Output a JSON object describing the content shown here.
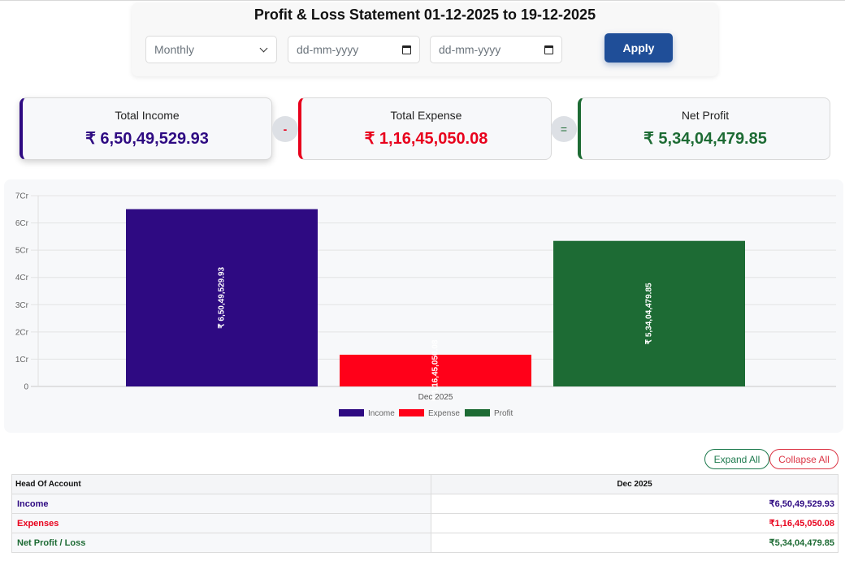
{
  "header": {
    "title": "Profit & Loss Statement 01-12-2025 to 19-12-2025"
  },
  "filters": {
    "period_select": {
      "value": "Monthly",
      "icon": "chevron-down-icon"
    },
    "from_date": {
      "placeholder": "dd-mm-yyyy",
      "icon": "calendar-icon"
    },
    "to_date": {
      "placeholder": "dd-mm-yyyy",
      "icon": "calendar-icon"
    },
    "apply_label": "Apply"
  },
  "summary": {
    "income": {
      "label": "Total Income",
      "value": "₹ 6,50,49,529.93",
      "color": "#2e0a82"
    },
    "minus_op": "-",
    "expense": {
      "label": "Total Expense",
      "value": "₹ 1,16,45,050.08",
      "color": "#e8001c"
    },
    "equals_op": "=",
    "profit": {
      "label": "Net Profit",
      "value": "₹ 5,34,04,479.85",
      "color": "#1d6b34"
    }
  },
  "chart_data": {
    "type": "bar",
    "title": "",
    "categories": [
      "Dec 2025"
    ],
    "series": [
      {
        "name": "Income",
        "values": [
          65049529.93
        ],
        "label": "₹ 6,50,49,529.93",
        "color": "#2e0a82"
      },
      {
        "name": "Expense",
        "values": [
          11645050.08
        ],
        "label": "₹ 1,16,45,050.08",
        "color": "#ff0019"
      },
      {
        "name": "Profit",
        "values": [
          53404479.85
        ],
        "label": "₹ 5,34,04,479.85",
        "color": "#1d6b34"
      }
    ],
    "xlabel": "",
    "ylabel": "",
    "ylim": [
      0,
      70000000
    ],
    "yticks": [
      "0",
      "1Cr",
      "2Cr",
      "3Cr",
      "4Cr",
      "5Cr",
      "6Cr",
      "7Cr"
    ],
    "grid": true,
    "legend_position": "bottom"
  },
  "actions": {
    "expand_all": "Expand All",
    "collapse_all": "Collapse All"
  },
  "table": {
    "headers": [
      "Head Of Account",
      "Dec 2025"
    ],
    "rows": [
      {
        "account": "Income",
        "value": "₹6,50,49,529.93"
      },
      {
        "account": "Expenses",
        "value": "₹1,16,45,050.08"
      },
      {
        "account": "Net Profit / Loss",
        "value": "₹5,34,04,479.85"
      }
    ]
  }
}
